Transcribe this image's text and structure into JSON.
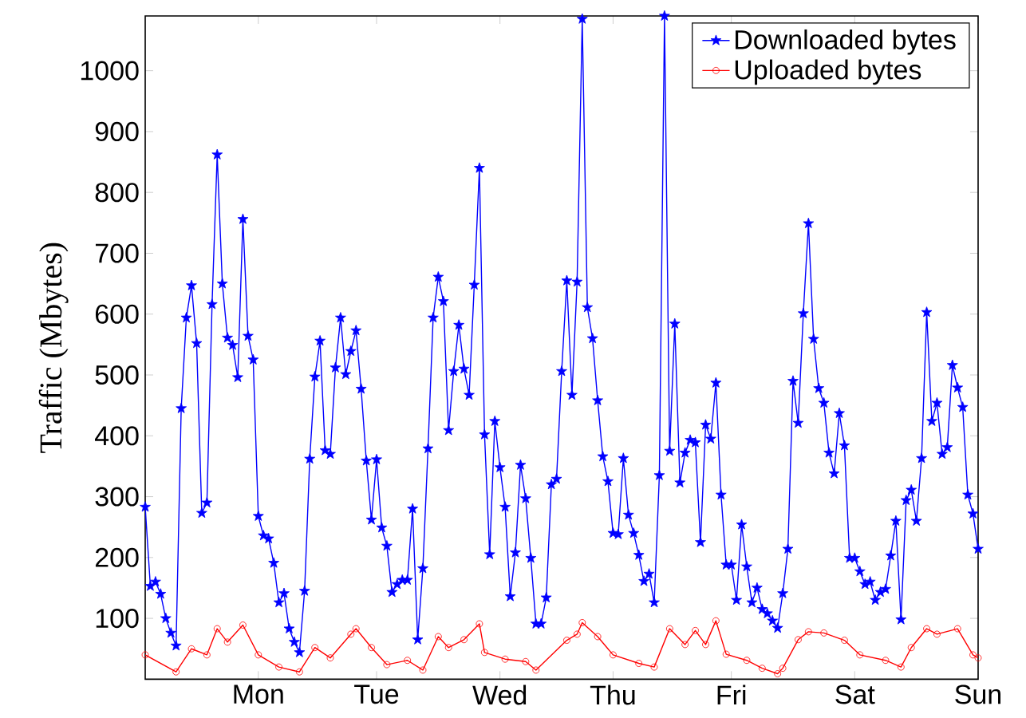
{
  "chart_data": {
    "type": "line",
    "ylabel": "Traffic (Mbytes)",
    "ylim": [
      0,
      1090
    ],
    "categories": [
      null,
      null,
      null,
      null,
      null,
      null,
      null,
      null,
      null,
      null,
      null,
      null,
      null,
      null,
      null,
      null,
      null,
      null,
      null,
      null,
      null,
      null,
      "Mon",
      null,
      null,
      null,
      null,
      null,
      null,
      null,
      null,
      null,
      null,
      null,
      null,
      null,
      null,
      null,
      null,
      null,
      null,
      null,
      null,
      null,
      null,
      "Tue",
      null,
      null,
      null,
      null,
      null,
      null,
      null,
      null,
      null,
      null,
      null,
      null,
      null,
      null,
      null,
      null,
      null,
      null,
      null,
      null,
      null,
      null,
      null,
      "Wed",
      null,
      null,
      null,
      null,
      null,
      null,
      null,
      null,
      null,
      null,
      null,
      null,
      null,
      null,
      null,
      null,
      null,
      null,
      null,
      null,
      null,
      "Thu",
      null,
      null,
      null,
      null,
      null,
      null,
      null,
      null,
      null,
      null,
      null,
      null,
      null,
      null,
      null,
      null,
      null,
      null,
      null,
      null,
      null,
      null,
      "Fri",
      null,
      null,
      null,
      null,
      null,
      null,
      null,
      null,
      null,
      null,
      null,
      null,
      null,
      null,
      null,
      null,
      null,
      null,
      null,
      null,
      null,
      null,
      null,
      "Sat",
      null,
      null,
      null,
      null,
      null,
      null,
      null,
      null,
      null,
      null,
      null,
      null,
      null,
      null,
      null,
      null,
      null,
      null,
      null,
      null,
      null,
      null,
      null,
      "Sun"
    ],
    "yticks": [
      100,
      200,
      300,
      400,
      500,
      600,
      700,
      800,
      900,
      1000
    ],
    "grid": false,
    "legend": "top right",
    "series": [
      {
        "name": "Downloaded bytes",
        "color": "#0000ff",
        "marker": "star",
        "line_style": "solid",
        "values": [
          283,
          153,
          160,
          140,
          100,
          76,
          55,
          445,
          594,
          647,
          552,
          273,
          290,
          616,
          862,
          650,
          561,
          549,
          496,
          756,
          564,
          525,
          268,
          236,
          231,
          191,
          126,
          141,
          83,
          61,
          44,
          145,
          362,
          497,
          556,
          376,
          370,
          512,
          594,
          501,
          539,
          573,
          477,
          359,
          262,
          361,
          249,
          219,
          143,
          156,
          163,
          163,
          280,
          65,
          182,
          379,
          594,
          661,
          621,
          409,
          506,
          582,
          510,
          467,
          648,
          840,
          402,
          205,
          424,
          348,
          283,
          136,
          208,
          352,
          297,
          199,
          91,
          91,
          134,
          320,
          329,
          506,
          655,
          467,
          653,
          1085,
          611,
          560,
          458,
          366,
          325,
          240,
          238,
          363,
          270,
          240,
          204,
          161,
          173,
          126,
          335,
          1090,
          375,
          584,
          323,
          372,
          393,
          389,
          225,
          418,
          395,
          487,
          303,
          188,
          188,
          130,
          254,
          185,
          126,
          150,
          115,
          108,
          96,
          84,
          141,
          214,
          490,
          421,
          601,
          749,
          559,
          478,
          454,
          372,
          338,
          437,
          384,
          199,
          199,
          177,
          156,
          160,
          130,
          143,
          148,
          203,
          260,
          98,
          294,
          311,
          260,
          363,
          603,
          424,
          454,
          370,
          381,
          516,
          479,
          447,
          303,
          272,
          214
        ]
      },
      {
        "name": "Uploaded bytes",
        "color": "#ff0000",
        "marker": "circle",
        "line_style": "solid",
        "values": [
          40,
          null,
          null,
          null,
          null,
          null,
          12,
          null,
          null,
          50,
          null,
          null,
          40,
          null,
          83,
          null,
          61,
          null,
          null,
          89,
          null,
          null,
          40,
          null,
          null,
          null,
          20,
          null,
          null,
          null,
          12,
          null,
          null,
          52,
          null,
          null,
          35,
          null,
          null,
          null,
          74,
          83,
          null,
          null,
          52,
          null,
          null,
          24,
          null,
          null,
          null,
          31,
          null,
          null,
          15,
          null,
          null,
          70,
          null,
          52,
          null,
          null,
          65,
          null,
          null,
          91,
          44,
          null,
          null,
          null,
          33,
          null,
          null,
          null,
          29,
          null,
          15,
          null,
          null,
          null,
          null,
          null,
          64,
          null,
          74,
          93,
          null,
          null,
          70,
          null,
          null,
          40,
          null,
          null,
          null,
          null,
          26,
          null,
          null,
          20,
          null,
          null,
          83,
          null,
          null,
          57,
          null,
          80,
          null,
          57,
          null,
          96,
          null,
          41,
          null,
          null,
          null,
          31,
          null,
          null,
          18,
          null,
          null,
          9,
          18,
          null,
          null,
          65,
          null,
          78,
          null,
          null,
          76,
          null,
          null,
          null,
          64,
          null,
          null,
          40,
          null,
          null,
          null,
          null,
          31,
          null,
          null,
          20,
          null,
          52,
          null,
          null,
          83,
          null,
          74,
          null,
          null,
          null,
          83,
          null,
          null,
          40,
          35
        ]
      }
    ]
  }
}
